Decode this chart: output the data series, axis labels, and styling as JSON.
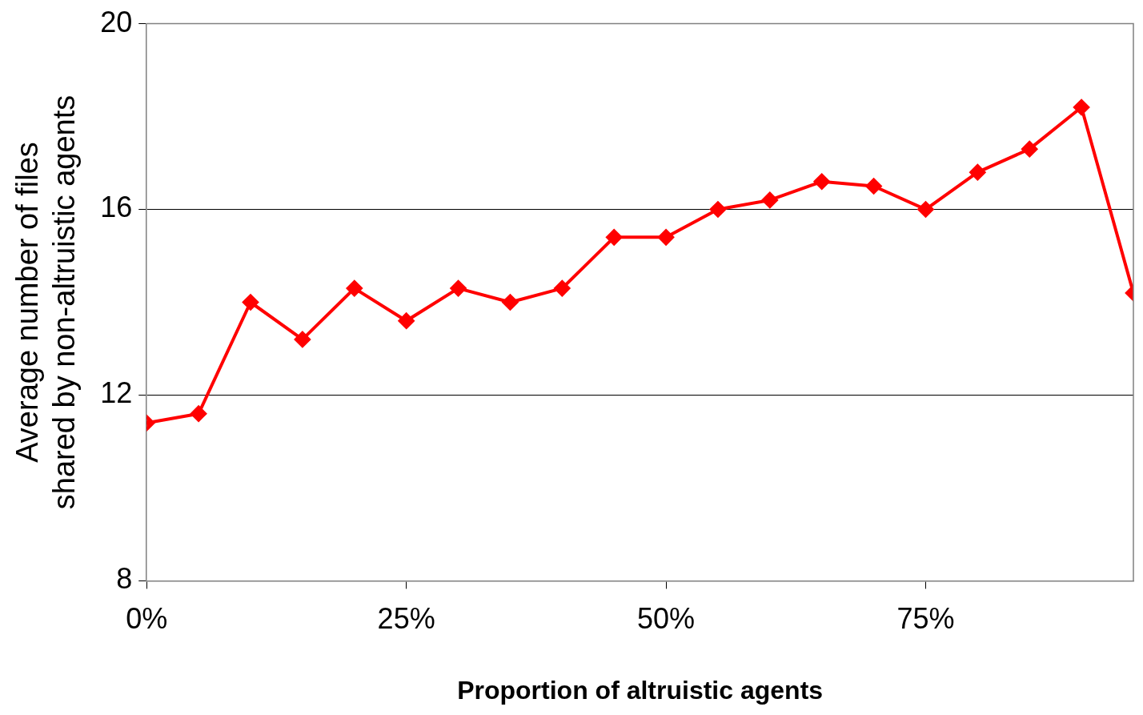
{
  "chart_data": {
    "type": "line",
    "xlabel": "Proportion of altruistic agents",
    "ylabel": "Average number of files\nshared by non-altruistic agents",
    "x": [
      0,
      5,
      10,
      15,
      20,
      25,
      30,
      35,
      40,
      45,
      50,
      55,
      60,
      65,
      70,
      75,
      80,
      85,
      90,
      95
    ],
    "series": [
      {
        "color": "#ff0000",
        "values": [
          11.4,
          11.6,
          14.0,
          13.2,
          14.3,
          13.6,
          14.3,
          14.0,
          14.3,
          15.4,
          15.4,
          16.0,
          16.2,
          16.6,
          16.5,
          16.0,
          16.8,
          17.3,
          18.2,
          14.2
        ]
      }
    ],
    "xlim": [
      0,
      95
    ],
    "xticks": [
      {
        "value": 0,
        "label": "0%"
      },
      {
        "value": 25,
        "label": "25%"
      },
      {
        "value": 50,
        "label": "50%"
      },
      {
        "value": 75,
        "label": "75%"
      }
    ],
    "ylim": [
      8,
      20
    ],
    "yticks": [
      8,
      12,
      16,
      20
    ],
    "grid": "y",
    "legend": false,
    "marker": "diamond",
    "line_style": "solid"
  }
}
